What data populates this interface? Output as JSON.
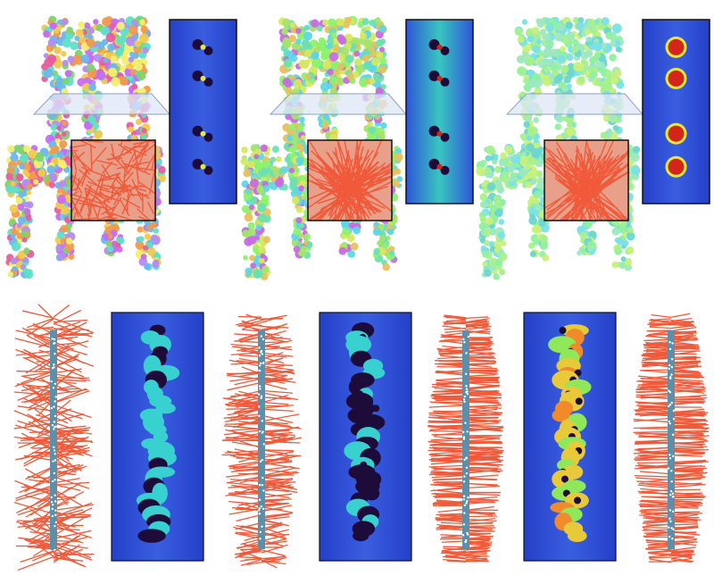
{
  "figure": {
    "panels_top": [
      {
        "label": "",
        "normals": "chaotic"
      },
      {
        "label": "",
        "normals": "partial"
      },
      {
        "label": "",
        "normals": "consistent"
      }
    ],
    "panels_bottom": [
      {
        "label": "",
        "normals": "chaotic"
      },
      {
        "label": "",
        "normals": "partial"
      },
      {
        "label": "",
        "normals": "consistent"
      }
    ],
    "colors": {
      "normal_hair": "#f05a3a",
      "slice_plane": "#dfe7f5",
      "heatmap_blue": "#2e4fd6",
      "heatmap_dark": "#1d0b3a",
      "heatmap_cyan": "#39d0d0",
      "heatmap_yellow": "#e3e83a",
      "heatmap_red": "#d4251a",
      "frame": "#111111",
      "rod": "#5d8fa8"
    }
  }
}
